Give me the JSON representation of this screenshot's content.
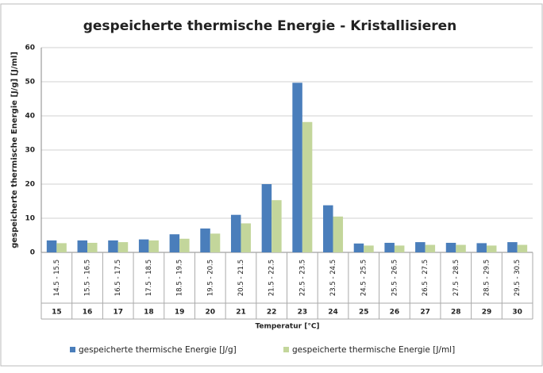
{
  "chart_data": {
    "type": "bar",
    "title": "gespeicherte thermische Energie - Kristallisieren",
    "y_label": "gespeicherte thermische Energie [J/g] [J/ml]",
    "x_label": "Temperatur [°C]",
    "categories": [
      "15",
      "16",
      "17",
      "18",
      "19",
      "20",
      "21",
      "22",
      "23",
      "24",
      "25",
      "26",
      "27",
      "28",
      "29",
      "30"
    ],
    "category_ranges": [
      "14.5 - 15.5",
      "15.5 - 16.5",
      "16.5 - 17.5",
      "17.5 - 18.5",
      "18.5 - 19.5",
      "19.5 - 20.5",
      "20.5 - 21.5",
      "21.5 - 22.5",
      "22.5 - 23.5",
      "23.5 - 24.5",
      "24.5 - 25.5",
      "25.5 - 26.5",
      "26.5 - 27.5",
      "27.5 - 28.5",
      "28.5 - 29.5",
      "29.5 - 30.5"
    ],
    "series": [
      {
        "name": "gespeicherte thermische Energie [J/g]",
        "color": "#4a7ebb",
        "values": [
          3.5,
          3.5,
          3.5,
          3.8,
          5.3,
          7,
          11,
          20,
          49.7,
          13.8,
          2.6,
          2.8,
          3,
          2.8,
          2.7,
          3
        ]
      },
      {
        "name": "gespeicherte thermische Energie [J/ml]",
        "color": "#c3d69b",
        "values": [
          2.7,
          2.8,
          3,
          3.5,
          4,
          5.5,
          8.5,
          15.3,
          38.2,
          10.5,
          2,
          2,
          2.2,
          2.2,
          2,
          2.2
        ]
      }
    ],
    "ylim": [
      0,
      60
    ],
    "yticks": [
      0,
      10,
      20,
      30,
      40,
      50,
      60
    ],
    "grid": true,
    "legend": "bottom"
  }
}
